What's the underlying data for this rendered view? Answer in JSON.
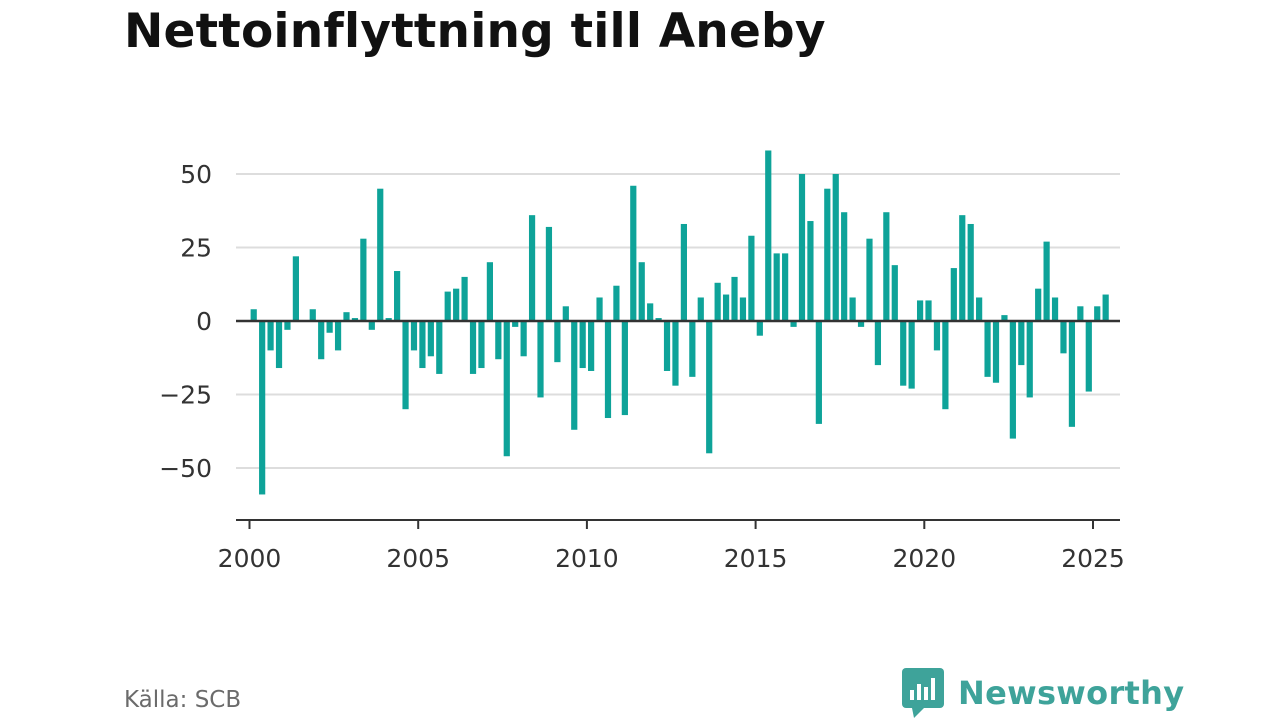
{
  "chart_data": {
    "type": "bar",
    "title": "Nettoinflyttning till Aneby",
    "xlabel": "",
    "ylabel": "",
    "ylim": [
      -65,
      60
    ],
    "xlim": [
      1999.6,
      2025.8
    ],
    "yticks": [
      50,
      25,
      0,
      -25,
      -50
    ],
    "ytick_labels": [
      "50",
      "25",
      "0",
      "−25",
      "−50"
    ],
    "xticks": [
      2000,
      2005,
      2010,
      2015,
      2020,
      2025
    ],
    "xtick_labels": [
      "2000",
      "2005",
      "2010",
      "2015",
      "2020",
      "2025"
    ],
    "grid": true,
    "bar_color": "#0ea399",
    "x": [
      2000.125,
      2000.375,
      2000.625,
      2000.875,
      2001.125,
      2001.375,
      2001.625,
      2001.875,
      2002.125,
      2002.375,
      2002.625,
      2002.875,
      2003.125,
      2003.375,
      2003.625,
      2003.875,
      2004.125,
      2004.375,
      2004.625,
      2004.875,
      2005.125,
      2005.375,
      2005.625,
      2005.875,
      2006.125,
      2006.375,
      2006.625,
      2006.875,
      2007.125,
      2007.375,
      2007.625,
      2007.875,
      2008.125,
      2008.375,
      2008.625,
      2008.875,
      2009.125,
      2009.375,
      2009.625,
      2009.875,
      2010.125,
      2010.375,
      2010.625,
      2010.875,
      2011.125,
      2011.375,
      2011.625,
      2011.875,
      2012.125,
      2012.375,
      2012.625,
      2012.875,
      2013.125,
      2013.375,
      2013.625,
      2013.875,
      2014.125,
      2014.375,
      2014.625,
      2014.875,
      2015.125,
      2015.375,
      2015.625,
      2015.875,
      2016.125,
      2016.375,
      2016.625,
      2016.875,
      2017.125,
      2017.375,
      2017.625,
      2017.875,
      2018.125,
      2018.375,
      2018.625,
      2018.875,
      2019.125,
      2019.375,
      2019.625,
      2019.875,
      2020.125,
      2020.375,
      2020.625,
      2020.875,
      2021.125,
      2021.375,
      2021.625,
      2021.875,
      2022.125,
      2022.375,
      2022.625,
      2022.875,
      2023.125,
      2023.375,
      2023.625,
      2023.875,
      2024.125,
      2024.375,
      2024.625,
      2024.875,
      2025.125,
      2025.375
    ],
    "values": [
      4,
      -59,
      -10,
      -16,
      -3,
      22,
      0,
      4,
      -13,
      -4,
      -10,
      3,
      1,
      28,
      -3,
      45,
      1,
      17,
      -30,
      -10,
      -16,
      -12,
      -18,
      10,
      11,
      15,
      -18,
      -16,
      20,
      -13,
      -46,
      -2,
      -12,
      36,
      -26,
      32,
      -14,
      5,
      -37,
      -16,
      -17,
      8,
      -33,
      12,
      -32,
      46,
      20,
      6,
      1,
      -17,
      -22,
      33,
      -19,
      8,
      -45,
      13,
      9,
      15,
      8,
      29,
      -5,
      58,
      23,
      23,
      -2,
      50,
      34,
      -35,
      45,
      50,
      37,
      8,
      -2,
      28,
      -15,
      37,
      19,
      -22,
      -23,
      7,
      7,
      -10,
      -30,
      18,
      36,
      33,
      8,
      -19,
      -21,
      2,
      -40,
      -15,
      -26,
      11,
      27,
      8,
      -11,
      -36,
      5,
      -24,
      5,
      9
    ]
  },
  "footer": {
    "source": "Källa: SCB",
    "brand": "Newsworthy"
  },
  "colors": {
    "bar": "#0ea399",
    "brand": "#3ea39a",
    "grid": "#dddddd",
    "zero_line": "#333333"
  }
}
